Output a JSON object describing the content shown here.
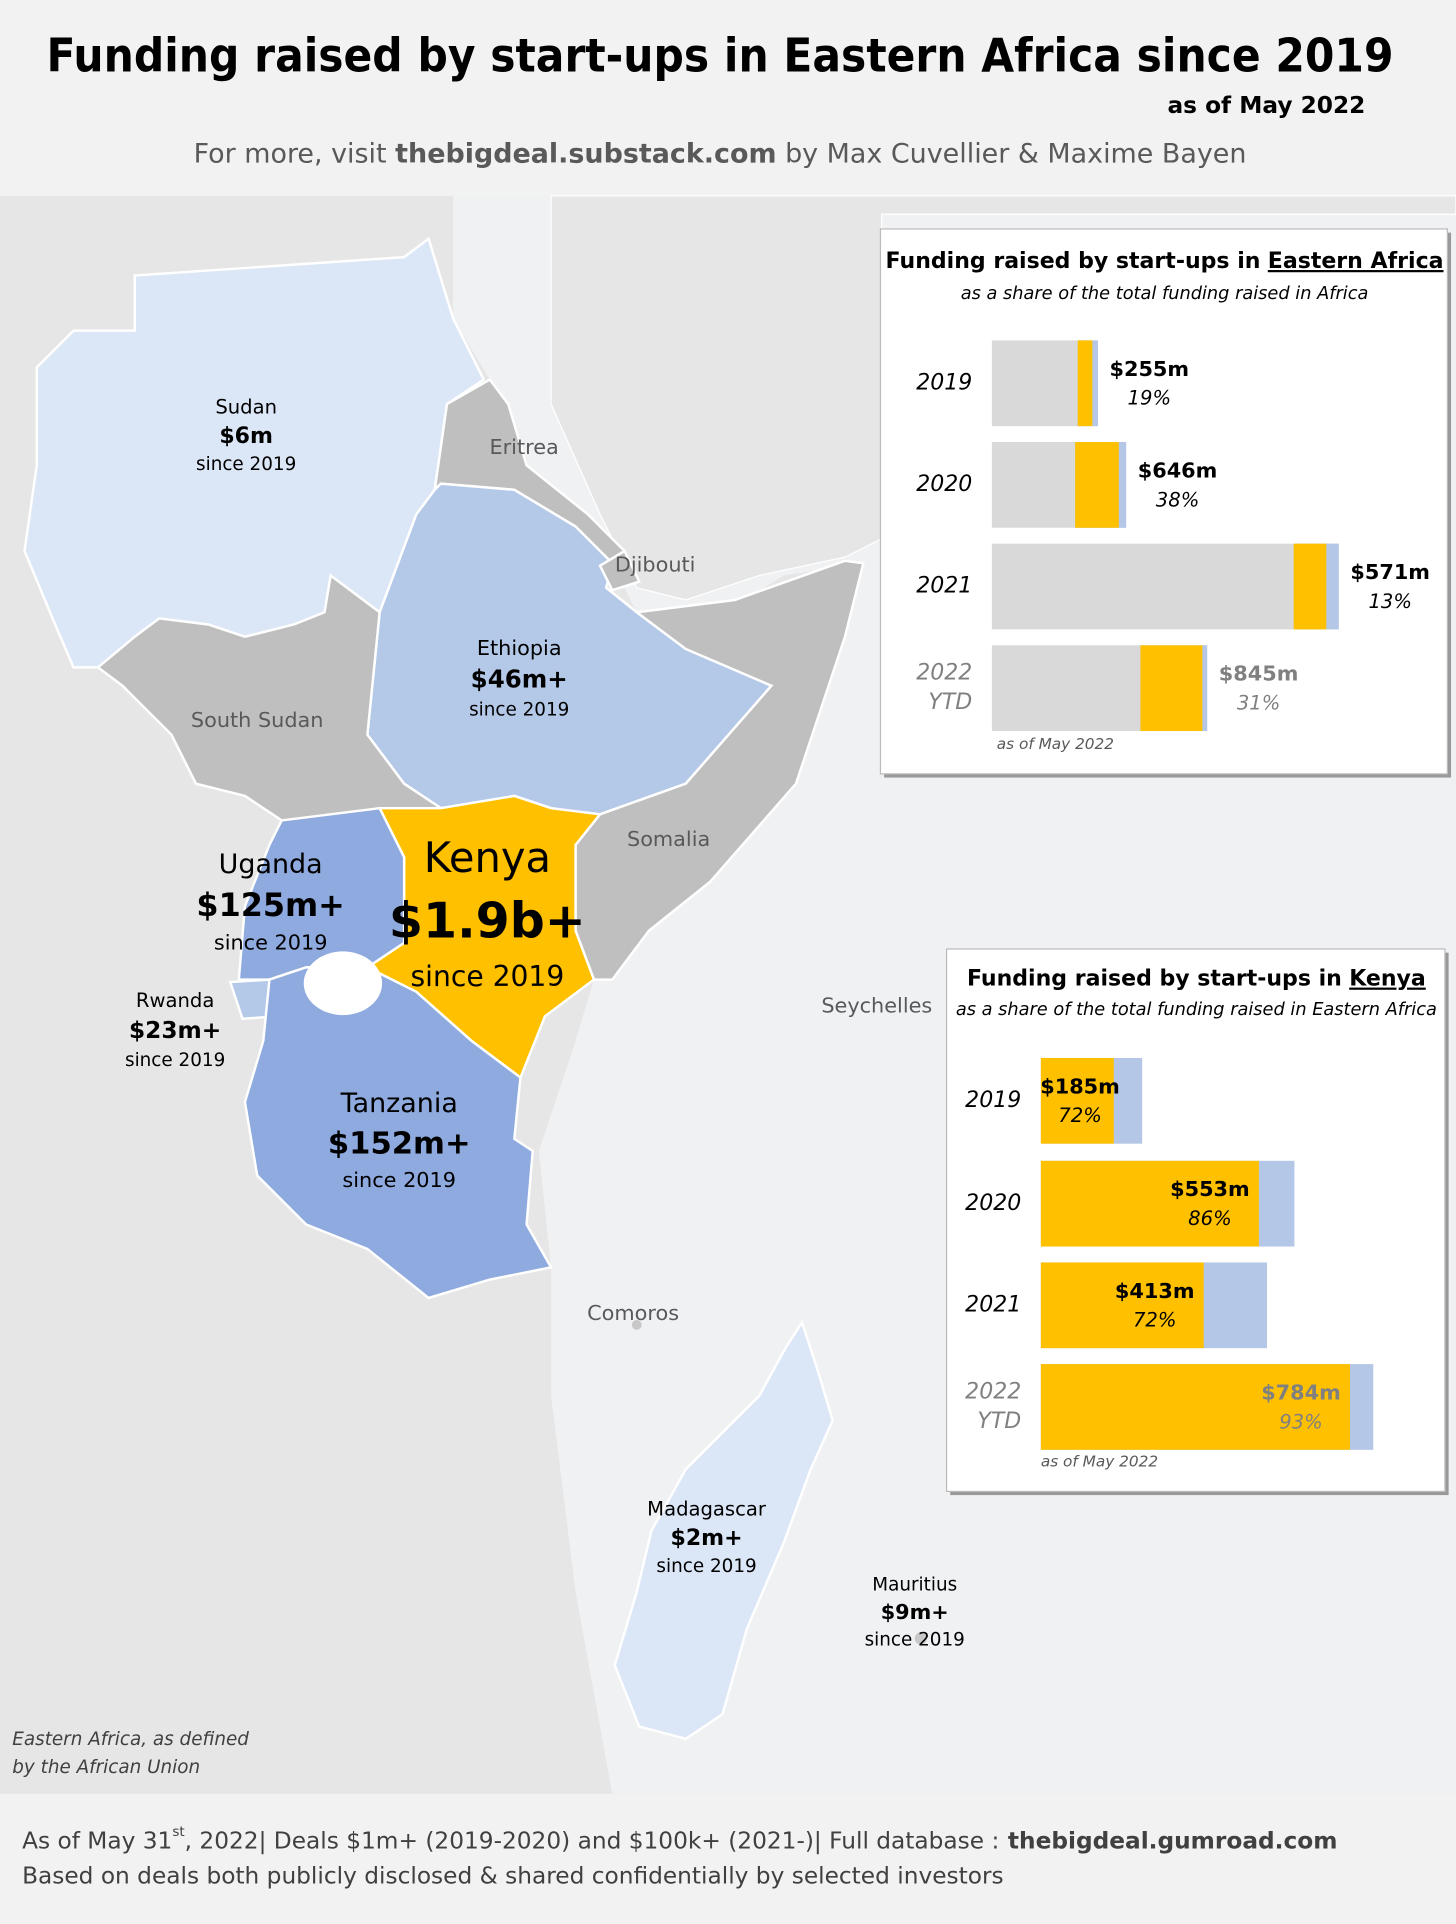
{
  "header": {
    "title": "Funding raised by start-ups in Eastern Africa since 2019",
    "date": "as of May 2022",
    "credit": [
      "For more, visit",
      "thebigdeal.substack.com",
      "by Max Cuvellier & Maxime Bayen"
    ]
  },
  "map": {
    "countries": [
      {
        "name": "Sudan",
        "amount": "$6m",
        "since": "since 2019"
      },
      {
        "name": "Eritrea"
      },
      {
        "name": "Djibouti"
      },
      {
        "name": "Ethiopia",
        "amount": "$46m+",
        "since": "since 2019"
      },
      {
        "name": "South Sudan"
      },
      {
        "name": "Somalia"
      },
      {
        "name": "Kenya",
        "amount": "$1.9b+",
        "since": "since 2019"
      },
      {
        "name": "Uganda",
        "amount": "$125m+",
        "since": "since 2019"
      },
      {
        "name": "Rwanda",
        "amount": "$23m+",
        "since": "since 2019"
      },
      {
        "name": "Tanzania",
        "amount": "$152m+",
        "since": "since 2019"
      },
      {
        "name": "Seychelles"
      },
      {
        "name": "Comoros"
      },
      {
        "name": "Madagascar",
        "amount": "$2m+",
        "since": "since 2019"
      },
      {
        "name": "Mauritius",
        "amount": "$9m+",
        "since": "since 2019"
      }
    ],
    "note": [
      "Eastern Africa, as defined",
      "by the African Union"
    ]
  },
  "chart_data": [
    {
      "type": "bar",
      "title": "Funding raised by start-ups in",
      "title_highlight": "Eastern Africa",
      "subtitle": "as a share of the total funding raised in Africa",
      "note": "as of May 2022",
      "categories": [
        "2019",
        "2020",
        "2021",
        "2022 YTD"
      ],
      "values": [
        255,
        646,
        571,
        845
      ],
      "value_labels": [
        "$255m",
        "$646m",
        "$571m",
        "$845m"
      ],
      "shares": [
        19,
        38,
        13,
        31
      ],
      "share_labels": [
        "19%",
        "38%",
        "13%",
        "31%"
      ],
      "color": "#b4c7e7",
      "highlight_color": "#ffc000",
      "total_color": "#d9d9d9"
    },
    {
      "type": "bar",
      "title": "Funding raised by start-ups in",
      "title_highlight": "Kenya",
      "subtitle": "as a share of the total funding raised in Eastern Africa",
      "note": "as of May 2022",
      "categories": [
        "2019",
        "2020",
        "2021",
        "2022 YTD"
      ],
      "values": [
        185,
        553,
        413,
        784
      ],
      "value_labels": [
        "$185m",
        "$553m",
        "$413m",
        "$784m"
      ],
      "shares": [
        72,
        86,
        72,
        93
      ],
      "share_labels": [
        "72%",
        "86%",
        "72%",
        "93%"
      ],
      "color": "#ffc000",
      "total_color": "#b4c7e7"
    }
  ],
  "footer": {
    "line1": [
      "As of May 31",
      "st",
      ", 2022| Deals $1m+ (2019-2020) and $100k+ (2021-)| Full database :",
      "thebigdeal.gumroad.com"
    ],
    "line2": "Based on deals both publicly disclosed & shared confidentially by selected investors"
  }
}
